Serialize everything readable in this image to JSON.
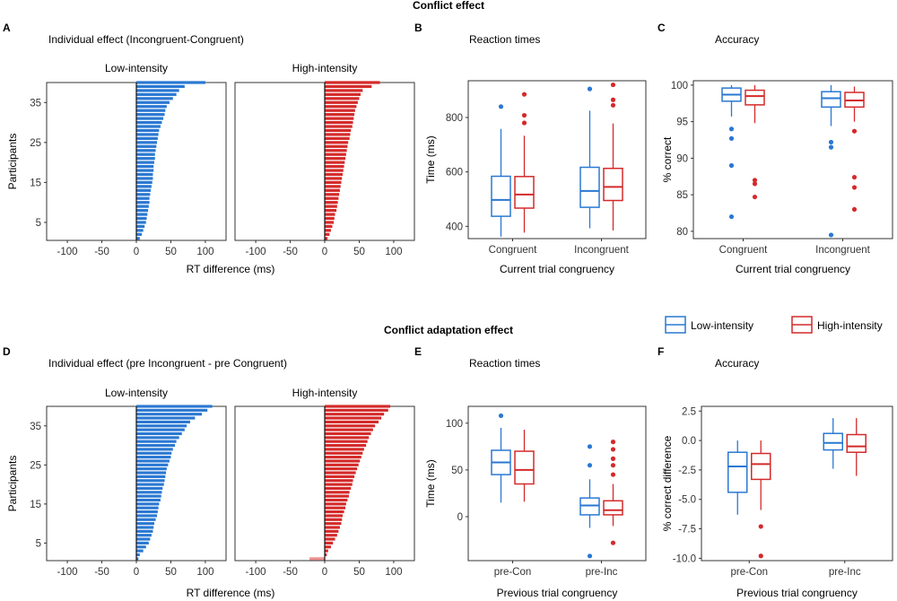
{
  "sections": {
    "top_title": "Conflict effect",
    "bottom_title": "Conflict adaptation effect"
  },
  "colors": {
    "low": "#2a78d2",
    "high": "#d42a2a",
    "high_negative": "#f09090"
  },
  "legend": {
    "items": [
      {
        "label": "Low-intensity",
        "color": "#2a78d2"
      },
      {
        "label": "High-intensity",
        "color": "#d42a2a"
      }
    ],
    "placement": "right, between rows"
  },
  "chart_data": [
    {
      "panel": "A",
      "type": "bar",
      "orientation": "horizontal",
      "title": "Individual effect (Incongruent-Congruent)",
      "xlabel": "RT difference (ms)",
      "ylabel": "Participants",
      "xlim": [
        -130,
        130
      ],
      "ylim": [
        0.5,
        40
      ],
      "xticks": [
        -100,
        -50,
        0,
        50,
        100
      ],
      "yticks": [
        5,
        15,
        25,
        35
      ],
      "grid": false,
      "facets": [
        {
          "name": "Low-intensity",
          "color": "#2a78d2",
          "values": [
            5,
            8,
            10,
            12,
            14,
            15,
            16,
            17,
            18,
            19,
            19,
            20,
            21,
            22,
            23,
            24,
            24,
            25,
            25,
            26,
            27,
            27,
            28,
            29,
            30,
            31,
            32,
            33,
            35,
            37,
            39,
            41,
            42,
            44,
            48,
            53,
            58,
            62,
            70,
            100
          ]
        },
        {
          "name": "High-intensity",
          "color": "#d42a2a",
          "values": [
            4,
            7,
            9,
            11,
            13,
            14,
            15,
            17,
            18,
            19,
            20,
            21,
            22,
            23,
            24,
            25,
            26,
            27,
            28,
            29,
            30,
            31,
            32,
            33,
            34,
            36,
            37,
            38,
            40,
            41,
            42,
            43,
            44,
            46,
            48,
            50,
            52,
            55,
            68,
            80
          ]
        }
      ]
    },
    {
      "panel": "B",
      "type": "box",
      "title": "Reaction times",
      "xlabel": "Current trial congruency",
      "ylabel": "Time (ms)",
      "categories": [
        "Congruent",
        "Incongruent"
      ],
      "ylim": [
        355,
        935
      ],
      "yticks": [
        400,
        600,
        800
      ],
      "grid": false,
      "boxes": [
        {
          "category": "Congruent",
          "series": "Low-intensity",
          "min": 362,
          "q1": 437,
          "median": 497,
          "q3": 584,
          "max": 758,
          "outliers": [
            840
          ]
        },
        {
          "category": "Congruent",
          "series": "High-intensity",
          "min": 377,
          "q1": 467,
          "median": 517,
          "q3": 583,
          "max": 733,
          "outliers": [
            780,
            808,
            885
          ]
        },
        {
          "category": "Incongruent",
          "series": "Low-intensity",
          "min": 393,
          "q1": 470,
          "median": 530,
          "q3": 617,
          "max": 825,
          "outliers": [
            905
          ]
        },
        {
          "category": "Incongruent",
          "series": "High-intensity",
          "min": 385,
          "q1": 495,
          "median": 545,
          "q3": 613,
          "max": 778,
          "outliers": [
            845,
            865,
            920
          ]
        }
      ]
    },
    {
      "panel": "C",
      "type": "box",
      "title": "Accuracy",
      "xlabel": "Current trial congruency",
      "ylabel": "% correct",
      "categories": [
        "Congruent",
        "Incongruent"
      ],
      "ylim": [
        79,
        100.6
      ],
      "yticks": [
        80,
        85,
        90,
        95,
        100
      ],
      "grid": false,
      "boxes": [
        {
          "category": "Congruent",
          "series": "Low-intensity",
          "min": 95.7,
          "q1": 97.8,
          "median": 98.7,
          "q3": 99.6,
          "max": 100,
          "outliers": [
            94.0,
            92.7,
            89.0,
            82.0
          ]
        },
        {
          "category": "Congruent",
          "series": "High-intensity",
          "min": 94.8,
          "q1": 97.3,
          "median": 98.5,
          "q3": 99.3,
          "max": 100,
          "outliers": [
            87.0,
            86.5,
            84.7
          ]
        },
        {
          "category": "Incongruent",
          "series": "Low-intensity",
          "min": 94.4,
          "q1": 97.0,
          "median": 98.2,
          "q3": 99.1,
          "max": 100,
          "outliers": [
            92.2,
            91.5,
            79.5
          ]
        },
        {
          "category": "Incongruent",
          "series": "High-intensity",
          "min": 95.0,
          "q1": 97.0,
          "median": 97.9,
          "q3": 99.0,
          "max": 99.8,
          "outliers": [
            93.7,
            87.4,
            86.0,
            83.0
          ]
        }
      ]
    },
    {
      "panel": "D",
      "type": "bar",
      "orientation": "horizontal",
      "title": "Individual effect (pre Incongruent - pre Congruent)",
      "xlabel": "RT difference (ms)",
      "ylabel": "Participants",
      "xlim": [
        -130,
        130
      ],
      "ylim": [
        0.5,
        40
      ],
      "xticks": [
        -100,
        -50,
        0,
        50,
        100
      ],
      "yticks": [
        5,
        15,
        25,
        35
      ],
      "grid": false,
      "facets": [
        {
          "name": "Low-intensity",
          "color": "#2a78d2",
          "values": [
            3,
            5,
            10,
            14,
            18,
            20,
            22,
            24,
            25,
            26,
            28,
            30,
            31,
            32,
            33,
            35,
            36,
            37,
            38,
            40,
            41,
            42,
            43,
            44,
            46,
            48,
            50,
            51,
            53,
            56,
            58,
            62,
            66,
            70,
            73,
            78,
            85,
            95,
            103,
            110
          ]
        },
        {
          "name": "High-intensity",
          "color": "#d42a2a",
          "negative_color": "#f09090",
          "values": [
            -22,
            3,
            5,
            9,
            12,
            15,
            18,
            20,
            22,
            24,
            25,
            26,
            28,
            30,
            31,
            33,
            35,
            36,
            38,
            40,
            41,
            43,
            45,
            47,
            49,
            51,
            53,
            55,
            57,
            60,
            62,
            64,
            67,
            70,
            73,
            78,
            82,
            86,
            92,
            95
          ]
        }
      ]
    },
    {
      "panel": "E",
      "type": "box",
      "title": "Reaction times",
      "xlabel": "Previous trial congruency",
      "ylabel": "Time (ms)",
      "categories": [
        "pre-Con",
        "pre-Inc"
      ],
      "ylim": [
        -47,
        118
      ],
      "yticks": [
        0,
        50,
        100
      ],
      "grid": false,
      "boxes": [
        {
          "category": "pre-Con",
          "series": "Low-intensity",
          "min": 15,
          "q1": 45,
          "median": 58,
          "q3": 71,
          "max": 95,
          "outliers": [
            108
          ]
        },
        {
          "category": "pre-Con",
          "series": "High-intensity",
          "min": 16,
          "q1": 35,
          "median": 50,
          "q3": 70,
          "max": 93,
          "outliers": []
        },
        {
          "category": "pre-Inc",
          "series": "Low-intensity",
          "min": -12,
          "q1": 2,
          "median": 12,
          "q3": 20,
          "max": 40,
          "outliers": [
            55,
            75,
            -42
          ]
        },
        {
          "category": "pre-Inc",
          "series": "High-intensity",
          "min": -10,
          "q1": 2,
          "median": 7,
          "q3": 17,
          "max": 35,
          "outliers": [
            45,
            55,
            62,
            72,
            80,
            -28
          ]
        }
      ]
    },
    {
      "panel": "F",
      "type": "box",
      "title": "Accuracy",
      "xlabel": "Previous trial congruency",
      "ylabel": "% correct difference",
      "categories": [
        "pre-Con",
        "pre-Inc"
      ],
      "ylim": [
        -10.2,
        2.9
      ],
      "yticks": [
        2.5,
        0.0,
        -2.5,
        -5.0,
        -7.5,
        -10.0
      ],
      "grid": false,
      "boxes": [
        {
          "category": "pre-Con",
          "series": "Low-intensity",
          "min": -6.3,
          "q1": -4.4,
          "median": -2.2,
          "q3": -1.0,
          "max": 0.0,
          "outliers": []
        },
        {
          "category": "pre-Con",
          "series": "High-intensity",
          "min": -5.9,
          "q1": -3.3,
          "median": -2.0,
          "q3": -1.1,
          "max": 0.0,
          "outliers": [
            -7.3,
            -9.8
          ]
        },
        {
          "category": "pre-Inc",
          "series": "Low-intensity",
          "min": -2.4,
          "q1": -0.8,
          "median": -0.2,
          "q3": 0.6,
          "max": 1.9,
          "outliers": []
        },
        {
          "category": "pre-Inc",
          "series": "High-intensity",
          "min": -3.0,
          "q1": -1.0,
          "median": -0.5,
          "q3": 0.5,
          "max": 1.9,
          "outliers": []
        }
      ]
    }
  ]
}
